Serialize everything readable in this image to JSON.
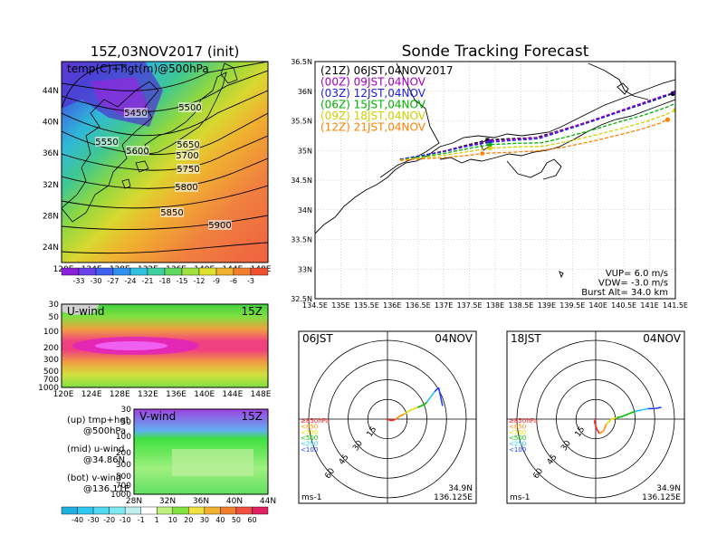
{
  "chart_data": [
    {
      "type": "heatmap",
      "title": "15Z,03NOV2017 (init)",
      "subtitle": "temp(C)+hgt(m)@500hPa",
      "x_ticks": [
        "120E",
        "124E",
        "128E",
        "132E",
        "136E",
        "140E",
        "144E",
        "148E"
      ],
      "y_ticks": [
        "24N",
        "28N",
        "32N",
        "36N",
        "40N",
        "44N"
      ],
      "colorbar_ticks": [
        "-33",
        "-30",
        "-27",
        "-24",
        "-21",
        "-18",
        "-15",
        "-12",
        "-9",
        "-6",
        "-3"
      ],
      "contour_labels": [
        "5450",
        "5500",
        "5550",
        "5600",
        "5650",
        "5700",
        "5750",
        "5800",
        "5850",
        "5900"
      ]
    },
    {
      "type": "line",
      "title": "Sonde Tracking Forecast",
      "x_ticks": [
        "134.5E",
        "135E",
        "135.5E",
        "136E",
        "136.5E",
        "137E",
        "137.5E",
        "138E",
        "138.5E",
        "139E",
        "139.5E",
        "140E",
        "140.5E",
        "141E",
        "141.5E"
      ],
      "y_ticks": [
        "32.5N",
        "33N",
        "33.5N",
        "34N",
        "34.5N",
        "35N",
        "35.5N",
        "36N",
        "36.5N"
      ],
      "xlim": [
        134.5,
        141.5
      ],
      "ylim": [
        32.5,
        36.5
      ],
      "series": [
        {
          "name": "(21Z) 06JST,04NOV2017",
          "color": "#000000",
          "x": [
            136.15,
            136.6,
            137.0,
            137.4,
            137.85,
            138.3,
            138.8,
            139.3,
            139.8,
            140.3,
            140.8,
            141.2,
            141.45
          ],
          "y": [
            34.85,
            34.92,
            34.99,
            35.08,
            35.18,
            35.2,
            35.22,
            35.35,
            35.48,
            35.62,
            35.76,
            35.88,
            35.96
          ]
        },
        {
          "name": "(00Z) 09JST,04NOV",
          "color": "#a000c0",
          "x": [
            136.15,
            136.6,
            137.0,
            137.4,
            137.9,
            138.35,
            138.85,
            139.35,
            139.85,
            140.35,
            140.85,
            141.25,
            141.5
          ],
          "y": [
            34.85,
            34.92,
            34.99,
            35.07,
            35.16,
            35.19,
            35.22,
            35.36,
            35.5,
            35.65,
            35.8,
            35.92,
            35.98
          ]
        },
        {
          "name": "(03Z) 12JST,04NOV",
          "color": "#2020e0",
          "x": [
            136.15,
            136.6,
            137.0,
            137.4,
            137.9,
            138.35,
            138.85,
            139.35,
            139.85,
            140.35,
            140.85,
            141.3,
            141.55
          ],
          "y": [
            34.85,
            34.92,
            34.98,
            35.06,
            35.14,
            35.17,
            35.2,
            35.34,
            35.48,
            35.63,
            35.78,
            35.92,
            36.0
          ]
        },
        {
          "name": "(06Z) 15JST,04NOV",
          "color": "#00b000",
          "x": [
            136.15,
            136.6,
            137.0,
            137.4,
            137.9,
            138.4,
            138.9,
            139.4,
            139.9,
            140.4,
            140.9,
            141.3,
            141.6
          ],
          "y": [
            34.84,
            34.9,
            34.95,
            35.02,
            35.1,
            35.12,
            35.13,
            35.23,
            35.35,
            35.48,
            35.6,
            35.72,
            35.83
          ]
        },
        {
          "name": "(09Z) 18JST,04NOV",
          "color": "#d0d000",
          "x": [
            136.15,
            136.6,
            137.0,
            137.4,
            137.9,
            138.4,
            138.9,
            139.4,
            139.9,
            140.4,
            140.9,
            141.3,
            141.5
          ],
          "y": [
            34.84,
            34.88,
            34.92,
            34.97,
            35.04,
            35.06,
            35.07,
            35.15,
            35.25,
            35.36,
            35.48,
            35.6,
            35.68
          ]
        },
        {
          "name": "(12Z) 21JST,04NOV",
          "color": "#ff8000",
          "x": [
            136.15,
            136.6,
            137.0,
            137.5,
            137.75,
            138.3,
            138.8,
            139.3,
            139.8,
            140.3,
            140.8,
            141.2,
            141.35
          ],
          "y": [
            34.83,
            34.86,
            34.88,
            34.92,
            34.95,
            34.97,
            34.99,
            35.05,
            35.14,
            35.24,
            35.35,
            35.46,
            35.52
          ]
        }
      ],
      "annotations": [
        "VUP= 6.0 m/s",
        "VDW= -3.0 m/s",
        "Burst Alt= 34.0 km"
      ]
    },
    {
      "type": "heatmap",
      "label": "U-wind",
      "time": "15Z",
      "x_ticks": [
        "120E",
        "124E",
        "128E",
        "132E",
        "136E",
        "140E",
        "144E",
        "148E"
      ],
      "y_ticks": [
        "30",
        "50",
        "100",
        "200",
        "300",
        "500",
        "700",
        "1000"
      ]
    },
    {
      "type": "heatmap",
      "label": "V-wind",
      "time": "15Z",
      "x_ticks": [
        "28N",
        "32N",
        "36N",
        "40N",
        "44N"
      ],
      "y_ticks": [
        "30",
        "50",
        "100",
        "200",
        "300",
        "500",
        "700",
        "1000"
      ],
      "colorbar_ticks": [
        "-40",
        "-30",
        "-20",
        "-10",
        "-1",
        "1",
        "10",
        "20",
        "30",
        "40",
        "50",
        "60"
      ]
    },
    {
      "type": "line",
      "title_left": "06JST",
      "title_right": "04NOV",
      "ring_labels": [
        "15",
        "30",
        "45",
        "60"
      ],
      "level_legend": [
        "≥850hPa",
        "<850",
        "<700",
        "<500",
        "<250",
        "<100"
      ],
      "level_colors": [
        "#ff2020",
        "#ff9000",
        "#e0e000",
        "#00c000",
        "#20c0ff",
        "#2040ff"
      ],
      "unit": "ms-1",
      "location": [
        "34.9N",
        "136.125E"
      ],
      "hodograph": [
        [
          0,
          0
        ],
        [
          2,
          -1
        ],
        [
          4,
          -1
        ],
        [
          6,
          0
        ],
        [
          9,
          2
        ],
        [
          13,
          4
        ],
        [
          18,
          7
        ],
        [
          23,
          9
        ],
        [
          28,
          11
        ],
        [
          30,
          13
        ],
        [
          33,
          17
        ],
        [
          36,
          21
        ],
        [
          39,
          24
        ],
        [
          42,
          10
        ]
      ]
    },
    {
      "type": "line",
      "title_left": "18JST",
      "title_right": "04NOV",
      "ring_labels": [
        "15",
        "30",
        "45",
        "60"
      ],
      "level_legend": [
        "≥850hPa",
        "<850",
        "<700",
        "<500",
        "<250",
        "<100"
      ],
      "level_colors": [
        "#ff2020",
        "#ff9000",
        "#e0e000",
        "#00c000",
        "#20c0ff",
        "#2040ff"
      ],
      "unit": "ms-1",
      "location": [
        "34.9N",
        "136.125E"
      ],
      "hodograph": [
        [
          0,
          0
        ],
        [
          -1,
          -2
        ],
        [
          1,
          -8
        ],
        [
          3,
          -11
        ],
        [
          6,
          -9
        ],
        [
          8,
          -4
        ],
        [
          12,
          0
        ],
        [
          16,
          1
        ],
        [
          20,
          2
        ],
        [
          25,
          4
        ],
        [
          30,
          6
        ],
        [
          35,
          7
        ],
        [
          40,
          8
        ],
        [
          45,
          8
        ],
        [
          50,
          9
        ]
      ]
    }
  ],
  "side_notes": {
    "line1a": "(up) tmp+hgt",
    "line1b": "@500hPa",
    "line2a": "(mid) u-wind",
    "line2b": "@34.86N",
    "line3a": "(bot) v-wind",
    "line3b": "@136.11E"
  }
}
